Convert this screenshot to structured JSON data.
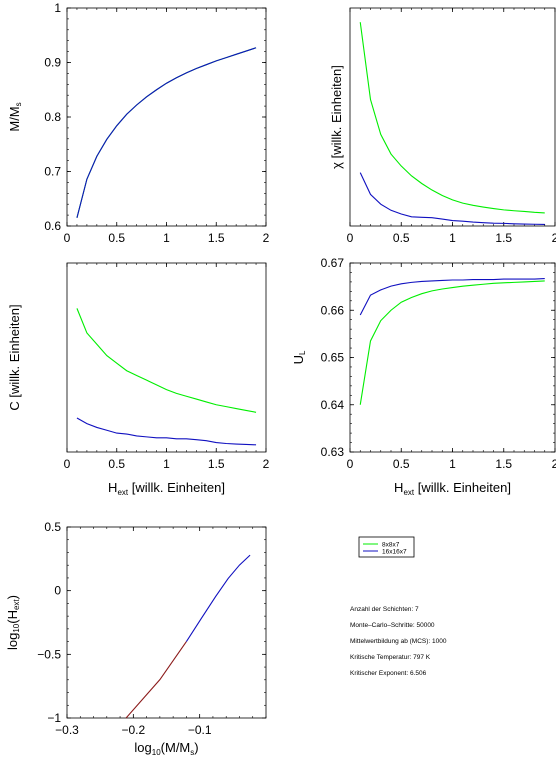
{
  "colors": {
    "green": "#00ee00",
    "blue": "#1010c0",
    "red": "#8b1a1a",
    "axis": "#000000"
  },
  "legend": {
    "items": [
      {
        "label": "8x8x7",
        "color": "#00ee00"
      },
      {
        "label": "16x16x7",
        "color": "#1010c0"
      }
    ]
  },
  "info": {
    "lines": [
      "Anzahl der Schichten: 7",
      "Monte–Carlo–Schritte: 50000",
      "Mittelwertbildung ab (MCS): 1000",
      "Kritische Temperatur: 797 K",
      "Kritischer Exponent: 6.506"
    ]
  },
  "chart_data": [
    {
      "id": "magnetization",
      "type": "line",
      "ylabel": {
        "main": "M/M",
        "sub": "s"
      },
      "xlabel": null,
      "xlim": [
        0,
        2
      ],
      "ylim": [
        0.6,
        1.0
      ],
      "xticks": [
        0,
        0.5,
        1,
        1.5,
        2
      ],
      "xtick_labels": [
        "0",
        "0.5",
        "1",
        "1.5",
        "2"
      ],
      "yticks": [
        0.6,
        0.7,
        0.8,
        0.9,
        1.0
      ],
      "ytick_labels": [
        "0.6",
        "0.7",
        "0.8",
        "0.9",
        "1"
      ],
      "series": [
        {
          "color": "#00ee00",
          "x": [
            0.1,
            0.2,
            0.3,
            0.4,
            0.5,
            0.6,
            0.7,
            0.8,
            0.9,
            1.0,
            1.1,
            1.2,
            1.3,
            1.4,
            1.5,
            1.6,
            1.7,
            1.8,
            1.9
          ],
          "y": [
            0.615,
            0.686,
            0.728,
            0.759,
            0.784,
            0.805,
            0.822,
            0.837,
            0.85,
            0.862,
            0.872,
            0.881,
            0.889,
            0.896,
            0.903,
            0.909,
            0.915,
            0.921,
            0.927
          ]
        },
        {
          "color": "#1010c0",
          "x": [
            0.1,
            0.2,
            0.3,
            0.4,
            0.5,
            0.6,
            0.7,
            0.8,
            0.9,
            1.0,
            1.1,
            1.2,
            1.3,
            1.4,
            1.5,
            1.6,
            1.7,
            1.8,
            1.9
          ],
          "y": [
            0.615,
            0.686,
            0.728,
            0.759,
            0.784,
            0.805,
            0.822,
            0.837,
            0.85,
            0.862,
            0.872,
            0.881,
            0.889,
            0.896,
            0.903,
            0.909,
            0.915,
            0.921,
            0.927
          ]
        }
      ]
    },
    {
      "id": "susceptibility",
      "type": "line",
      "ylabel": {
        "main": "χ [willk. Einheiten]",
        "sub": ""
      },
      "xlabel": null,
      "xlim": [
        0,
        2
      ],
      "ylim": [
        0,
        10
      ],
      "xticks": [
        0,
        0.5,
        1,
        1.5,
        2
      ],
      "xtick_labels": [
        "0",
        "0.5",
        "1",
        "1.5",
        "2"
      ],
      "yticks": [],
      "ytick_labels": [],
      "series": [
        {
          "color": "#00ee00",
          "x": [
            0.1,
            0.2,
            0.3,
            0.4,
            0.5,
            0.6,
            0.7,
            0.8,
            0.9,
            1.0,
            1.1,
            1.2,
            1.3,
            1.4,
            1.5,
            1.6,
            1.7,
            1.8,
            1.9
          ],
          "y": [
            9.35,
            5.8,
            4.2,
            3.3,
            2.75,
            2.3,
            1.95,
            1.65,
            1.4,
            1.2,
            1.05,
            0.95,
            0.87,
            0.8,
            0.74,
            0.7,
            0.67,
            0.63,
            0.6
          ]
        },
        {
          "color": "#1010c0",
          "x": [
            0.1,
            0.2,
            0.3,
            0.4,
            0.5,
            0.6,
            0.7,
            0.8,
            0.9,
            1.0,
            1.1,
            1.2,
            1.3,
            1.4,
            1.5,
            1.6,
            1.7,
            1.8,
            1.9
          ],
          "y": [
            2.45,
            1.45,
            1.0,
            0.72,
            0.55,
            0.42,
            0.4,
            0.38,
            0.32,
            0.25,
            0.22,
            0.18,
            0.15,
            0.13,
            0.12,
            0.1,
            0.09,
            0.08,
            0.07
          ]
        }
      ]
    },
    {
      "id": "specific-heat",
      "type": "line",
      "ylabel": {
        "main": "C [willk. Einheiten]",
        "sub": ""
      },
      "xlabel": {
        "main": "H",
        "sub": "ext",
        "rest": " [willk. Einheiten]"
      },
      "xlim": [
        0,
        2
      ],
      "ylim": [
        0,
        10
      ],
      "xticks": [
        0,
        0.5,
        1,
        1.5,
        2
      ],
      "xtick_labels": [
        "0",
        "0.5",
        "1",
        "1.5",
        "2"
      ],
      "yticks": [],
      "ytick_labels": [],
      "series": [
        {
          "color": "#00ee00",
          "x": [
            0.1,
            0.2,
            0.3,
            0.4,
            0.5,
            0.6,
            0.7,
            0.8,
            0.9,
            1.0,
            1.1,
            1.2,
            1.3,
            1.4,
            1.5,
            1.6,
            1.7,
            1.8,
            1.9
          ],
          "y": [
            7.6,
            6.3,
            5.7,
            5.1,
            4.7,
            4.3,
            4.05,
            3.8,
            3.55,
            3.3,
            3.1,
            2.95,
            2.8,
            2.65,
            2.5,
            2.4,
            2.3,
            2.2,
            2.1
          ]
        },
        {
          "color": "#1010c0",
          "x": [
            0.1,
            0.2,
            0.3,
            0.4,
            0.5,
            0.6,
            0.7,
            0.8,
            0.9,
            1.0,
            1.1,
            1.2,
            1.3,
            1.4,
            1.5,
            1.6,
            1.7,
            1.8,
            1.9
          ],
          "y": [
            1.8,
            1.5,
            1.3,
            1.15,
            1.0,
            0.95,
            0.85,
            0.8,
            0.75,
            0.75,
            0.7,
            0.7,
            0.65,
            0.6,
            0.5,
            0.45,
            0.42,
            0.4,
            0.38
          ]
        }
      ]
    },
    {
      "id": "binder-cumulant",
      "type": "line",
      "ylabel": {
        "main": "U",
        "sub": "L"
      },
      "xlabel": {
        "main": "H",
        "sub": "ext",
        "rest": " [willk. Einheiten]"
      },
      "xlim": [
        0,
        2
      ],
      "ylim": [
        0.63,
        0.67
      ],
      "xticks": [
        0,
        0.5,
        1,
        1.5,
        2
      ],
      "xtick_labels": [
        "0",
        "0.5",
        "1",
        "1.5",
        "2"
      ],
      "yticks": [
        0.63,
        0.64,
        0.65,
        0.66,
        0.67
      ],
      "ytick_labels": [
        "0.63",
        "0.64",
        "0.65",
        "0.66",
        "0.67"
      ],
      "series": [
        {
          "color": "#00ee00",
          "x": [
            0.1,
            0.2,
            0.3,
            0.4,
            0.5,
            0.6,
            0.7,
            0.8,
            0.9,
            1.0,
            1.1,
            1.2,
            1.3,
            1.4,
            1.5,
            1.6,
            1.7,
            1.8,
            1.9
          ],
          "y": [
            0.64,
            0.6535,
            0.6578,
            0.66,
            0.6617,
            0.6627,
            0.6635,
            0.6641,
            0.6645,
            0.6648,
            0.6651,
            0.6653,
            0.6655,
            0.6657,
            0.6658,
            0.6659,
            0.666,
            0.6661,
            0.6662
          ]
        },
        {
          "color": "#1010c0",
          "x": [
            0.1,
            0.2,
            0.3,
            0.4,
            0.5,
            0.6,
            0.7,
            0.8,
            0.9,
            1.0,
            1.1,
            1.2,
            1.3,
            1.4,
            1.5,
            1.6,
            1.7,
            1.8,
            1.9
          ],
          "y": [
            0.659,
            0.6632,
            0.6643,
            0.6651,
            0.6656,
            0.6659,
            0.6661,
            0.6662,
            0.6663,
            0.6664,
            0.6664,
            0.6665,
            0.6665,
            0.6665,
            0.6666,
            0.6666,
            0.6666,
            0.6666,
            0.6667
          ]
        }
      ]
    },
    {
      "id": "log-log",
      "type": "line",
      "ylabel": {
        "main": "log",
        "sub": "10",
        "rest": "(H",
        "sub2": "ext",
        "rest2": ")"
      },
      "xlabel": {
        "main": "log",
        "sub": "10",
        "rest": "(M/M",
        "sub2": "s",
        "rest2": ")"
      },
      "xlim": [
        -0.3,
        0
      ],
      "ylim": [
        -1,
        0.5
      ],
      "xticks": [
        -0.3,
        -0.2,
        -0.1
      ],
      "xtick_labels": [
        "−0.3",
        "−0.2",
        "−0.1"
      ],
      "yticks": [
        -1,
        -0.5,
        0,
        0.5
      ],
      "ytick_labels": [
        "−1",
        "−0.5",
        "0",
        "0.5"
      ],
      "series": [
        {
          "color": "#8b1a1a",
          "x": [
            -0.211,
            -0.16,
            -0.12
          ],
          "y": [
            -1.0,
            -0.699,
            -0.4
          ]
        },
        {
          "color": "#1010c0",
          "x": [
            -0.12,
            -0.098,
            -0.076,
            -0.057,
            -0.04,
            -0.024
          ],
          "y": [
            -0.4,
            -0.222,
            -0.046,
            0.096,
            0.201,
            0.279
          ]
        }
      ]
    }
  ]
}
